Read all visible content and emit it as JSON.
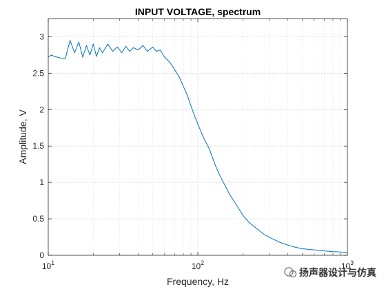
{
  "chart_data": {
    "type": "line",
    "title": "INPUT VOLTAGE, spectrum",
    "xlabel": "Frequency, Hz",
    "ylabel": "Amplitude, V",
    "xscale": "log",
    "xlim": [
      10,
      1000
    ],
    "ylim": [
      0,
      3.25
    ],
    "grid": "on (major + minor on x)",
    "x_ticks": [
      10,
      100,
      1000
    ],
    "x_tick_labels": [
      {
        "base": "10",
        "exp": "1"
      },
      {
        "base": "10",
        "exp": "2"
      },
      {
        "base": "10",
        "exp": "3"
      }
    ],
    "y_ticks": [
      0,
      0.5,
      1,
      1.5,
      2,
      2.5,
      3
    ],
    "y_tick_labels": [
      "0",
      "0.5",
      "1",
      "1.5",
      "2",
      "2.5",
      "3"
    ],
    "series": [
      {
        "color": "#0072BD",
        "x": [
          10,
          10.5,
          11,
          12,
          13,
          14,
          15,
          16,
          17,
          18,
          19,
          20,
          21,
          22,
          23,
          25,
          27,
          29,
          31,
          33,
          35,
          37,
          40,
          43,
          46,
          50,
          53,
          56,
          60,
          65,
          70,
          75,
          80,
          85,
          90,
          95,
          100,
          110,
          120,
          130,
          140,
          150,
          165,
          180,
          200,
          220,
          250,
          280,
          320,
          360,
          400,
          450,
          500,
          560,
          630,
          700,
          800,
          900,
          1000
        ],
        "y": [
          2.72,
          2.75,
          2.73,
          2.71,
          2.7,
          2.95,
          2.78,
          2.93,
          2.72,
          2.88,
          2.75,
          2.9,
          2.73,
          2.85,
          2.78,
          2.9,
          2.8,
          2.86,
          2.78,
          2.87,
          2.8,
          2.85,
          2.82,
          2.88,
          2.8,
          2.86,
          2.8,
          2.82,
          2.72,
          2.65,
          2.55,
          2.45,
          2.32,
          2.2,
          2.05,
          1.92,
          1.8,
          1.6,
          1.45,
          1.25,
          1.1,
          0.98,
          0.82,
          0.7,
          0.55,
          0.45,
          0.36,
          0.28,
          0.22,
          0.17,
          0.14,
          0.11,
          0.09,
          0.08,
          0.07,
          0.06,
          0.05,
          0.045,
          0.04
        ]
      }
    ]
  },
  "watermark": {
    "text": "扬声器设计与仿真",
    "icon": "wechat-official-account-icon"
  }
}
